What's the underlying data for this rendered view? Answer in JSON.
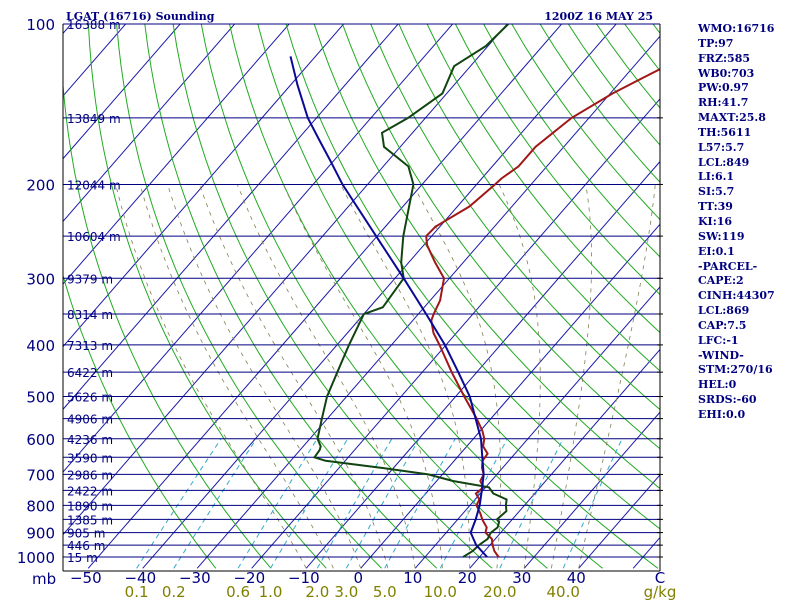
{
  "chart_data": {
    "type": "line",
    "title": "LGAT (16716) Sounding",
    "timestamp": "1200Z 16 MAY 25",
    "y_unit": "mb",
    "x_unit": "C",
    "mixing_unit": "g/kg",
    "pressure_labels": [
      {
        "p": 100,
        "label": "100"
      },
      {
        "p": 200,
        "label": "200"
      },
      {
        "p": 300,
        "label": "300"
      },
      {
        "p": 400,
        "label": "400"
      },
      {
        "p": 500,
        "label": "500"
      },
      {
        "p": 600,
        "label": "600"
      },
      {
        "p": 700,
        "label": "700"
      },
      {
        "p": 800,
        "label": "800"
      },
      {
        "p": 900,
        "label": "900"
      },
      {
        "p": 1000,
        "label": "1000"
      }
    ],
    "temperature_ticks": [
      {
        "t": -50,
        "label": "−50"
      },
      {
        "t": -40,
        "label": "−40"
      },
      {
        "t": -30,
        "label": "−30"
      },
      {
        "t": -20,
        "label": "−20"
      },
      {
        "t": -10,
        "label": "−10"
      },
      {
        "t": 0,
        "label": "0"
      },
      {
        "t": 10,
        "label": "10"
      },
      {
        "t": 20,
        "label": "20"
      },
      {
        "t": 30,
        "label": "30"
      },
      {
        "t": 40,
        "label": "40"
      }
    ],
    "mixing_ratio_labels": [
      {
        "w": 0.1,
        "label": "0.1"
      },
      {
        "w": 0.2,
        "label": "0.2"
      },
      {
        "w": 0.6,
        "label": "0.6"
      },
      {
        "w": 1.0,
        "label": "1.0"
      },
      {
        "w": 2.0,
        "label": "2.0"
      },
      {
        "w": 3.0,
        "label": "3.0"
      },
      {
        "w": 5.0,
        "label": "5.0"
      },
      {
        "w": 10.0,
        "label": "10.0"
      },
      {
        "w": 20.0,
        "label": "20.0"
      },
      {
        "w": 40.0,
        "label": "40.0"
      }
    ],
    "height_levels": [
      {
        "p": 100,
        "label": "16388 m"
      },
      {
        "p": 150,
        "label": "13849 m"
      },
      {
        "p": 200,
        "label": "12044 m"
      },
      {
        "p": 250,
        "label": "10604 m"
      },
      {
        "p": 300,
        "label": "9379 m"
      },
      {
        "p": 350,
        "label": "8314 m"
      },
      {
        "p": 400,
        "label": "7313 m"
      },
      {
        "p": 450,
        "label": "6422 m"
      },
      {
        "p": 500,
        "label": "5626 m"
      },
      {
        "p": 550,
        "label": "4906 m"
      },
      {
        "p": 600,
        "label": "4236 m"
      },
      {
        "p": 650,
        "label": "3590 m"
      },
      {
        "p": 700,
        "label": "2986 m"
      },
      {
        "p": 750,
        "label": "2422 m"
      },
      {
        "p": 800,
        "label": "1890 m"
      },
      {
        "p": 850,
        "label": "1385 m"
      },
      {
        "p": 900,
        "label": "905 m"
      },
      {
        "p": 950,
        "label": "446 m"
      },
      {
        "p": 1000,
        "label": "15 m"
      }
    ],
    "series": [
      {
        "name": "Temperature",
        "points": [
          [
            1000,
            23.5
          ],
          [
            975,
            21.8
          ],
          [
            950,
            20.5
          ],
          [
            925,
            19.4
          ],
          [
            900,
            17.2
          ],
          [
            880,
            16.6
          ],
          [
            860,
            15.2
          ],
          [
            850,
            14.5
          ],
          [
            830,
            13.3
          ],
          [
            800,
            11.2
          ],
          [
            780,
            10.8
          ],
          [
            760,
            9.2
          ],
          [
            740,
            9.6
          ],
          [
            720,
            8.0
          ],
          [
            700,
            7.6
          ],
          [
            680,
            6.2
          ],
          [
            660,
            5.2
          ],
          [
            640,
            5.0
          ],
          [
            620,
            3.0
          ],
          [
            600,
            2.0
          ],
          [
            580,
            0.4
          ],
          [
            550,
            -2.6
          ],
          [
            500,
            -8.4
          ],
          [
            450,
            -14.6
          ],
          [
            400,
            -21.2
          ],
          [
            380,
            -24.2
          ],
          [
            360,
            -26.6
          ],
          [
            350,
            -27.2
          ],
          [
            330,
            -28.2
          ],
          [
            300,
            -31.0
          ],
          [
            280,
            -35.2
          ],
          [
            260,
            -39.4
          ],
          [
            250,
            -41.0
          ],
          [
            240,
            -40.8
          ],
          [
            220,
            -37.8
          ],
          [
            200,
            -36.6
          ],
          [
            195,
            -36.4
          ],
          [
            185,
            -35.2
          ],
          [
            170,
            -35.2
          ],
          [
            150,
            -33.2
          ],
          [
            135,
            -29.6
          ],
          [
            120,
            -24.2
          ],
          [
            115,
            -22.0
          ],
          [
            110,
            -13.8
          ],
          [
            108,
            -12.0
          ],
          [
            105,
            -11.0
          ],
          [
            100,
            -11.8
          ]
        ]
      },
      {
        "name": "Dewpoint",
        "points": [
          [
            1000,
            17.0
          ],
          [
            975,
            17.8
          ],
          [
            950,
            18.0
          ],
          [
            925,
            18.6
          ],
          [
            900,
            18.2
          ],
          [
            880,
            18.6
          ],
          [
            860,
            18.0
          ],
          [
            850,
            17.2
          ],
          [
            820,
            17.6
          ],
          [
            800,
            16.6
          ],
          [
            780,
            15.8
          ],
          [
            760,
            12.4
          ],
          [
            740,
            10.6
          ],
          [
            720,
            3.0
          ],
          [
            700,
            -2.6
          ],
          [
            680,
            -12.4
          ],
          [
            660,
            -23.6
          ],
          [
            650,
            -26.2
          ],
          [
            630,
            -26.4
          ],
          [
            620,
            -26.8
          ],
          [
            600,
            -28.6
          ],
          [
            550,
            -31.0
          ],
          [
            500,
            -33.6
          ],
          [
            450,
            -35.6
          ],
          [
            400,
            -37.8
          ],
          [
            350,
            -40.0
          ],
          [
            340,
            -37.6
          ],
          [
            300,
            -38.4
          ],
          [
            280,
            -41.4
          ],
          [
            250,
            -45.2
          ],
          [
            200,
            -51.6
          ],
          [
            185,
            -55.4
          ],
          [
            170,
            -63.0
          ],
          [
            160,
            -65.6
          ],
          [
            150,
            -63.2
          ],
          [
            135,
            -60.8
          ],
          [
            120,
            -63.0
          ],
          [
            110,
            -60.4
          ],
          [
            100,
            -59.8
          ]
        ]
      },
      {
        "name": "Parcel",
        "points": [
          [
            1000,
            21.4
          ],
          [
            950,
            17.5
          ],
          [
            900,
            14.5
          ],
          [
            850,
            13.3
          ],
          [
            800,
            11.8
          ],
          [
            750,
            9.8
          ],
          [
            700,
            7.6
          ],
          [
            650,
            4.6
          ],
          [
            600,
            1.4
          ],
          [
            550,
            -2.8
          ],
          [
            500,
            -7.4
          ],
          [
            450,
            -13.4
          ],
          [
            400,
            -20.2
          ],
          [
            350,
            -28.6
          ],
          [
            300,
            -38.4
          ],
          [
            250,
            -50.2
          ],
          [
            200,
            -64.6
          ],
          [
            180,
            -70.8
          ],
          [
            165,
            -76.0
          ],
          [
            150,
            -81.6
          ],
          [
            130,
            -88.8
          ],
          [
            115,
            -94.6
          ]
        ]
      }
    ],
    "stats": [
      "WMO:16716",
      "TP:97",
      "FRZ:585",
      "WB0:703",
      "PW:0.97",
      "RH:41.7",
      "MAXT:25.8",
      "TH:5611",
      "L57:5.7",
      "LCL:849",
      "LI:6.1",
      "SI:5.7",
      "TT:39",
      "KI:16",
      "SW:119",
      "EI:0.1",
      "-PARCEL-",
      "CAPE:2",
      "CINH:44307",
      "LCL:869",
      "CAP:7.5",
      "LFC:-1",
      "-WIND-",
      "STM:270/16",
      "HEL:0",
      "SRDS:-60",
      "EHI:0.0"
    ],
    "colors": {
      "isobar": "#000080",
      "isotherm": "#1a1aaa",
      "dry_adiabat": "#22aa22",
      "moist_adiabat": "#808055",
      "mixing_ratio": "#33aacc",
      "temperature": "#a01818",
      "dewpoint": "#114411",
      "parcel": "#0a0a96",
      "mixing_label": "#808000",
      "stats_text": "#000080"
    }
  }
}
